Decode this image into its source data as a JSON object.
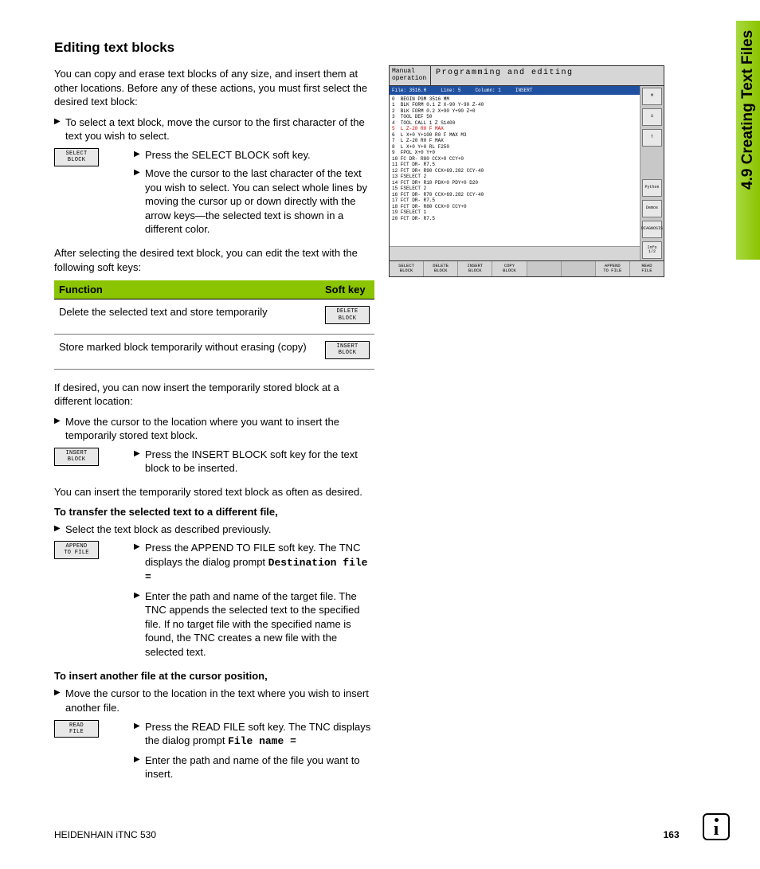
{
  "heading": "Editing text blocks",
  "intro": "You can copy and erase text blocks of any size, and insert them at other locations. Before any of these actions, you must first select the desired text block:",
  "bullet1": "To select a text block, move the cursor to the first character of the text you wish to select.",
  "softkeys": {
    "select_block": "SELECT\nBLOCK",
    "delete_block": "DELETE\nBLOCK",
    "insert_block": "INSERT\nBLOCK",
    "append_file": "APPEND\nTO FILE",
    "read_file": "READ\nFILE"
  },
  "step_select_press": "Press the SELECT BLOCK soft key.",
  "step_select_move": "Move the cursor to the last character of the text you wish to select. You can select whole lines by moving the cursor up or down directly with the arrow keys—the selected text is shown in a different color.",
  "after_select": "After selecting the desired text block, you can edit the text with the following soft keys:",
  "table": {
    "header_fn": "Function",
    "header_sk": "Soft key",
    "rows": [
      {
        "fn": "Delete the selected text and store temporarily",
        "sk": "DELETE\nBLOCK"
      },
      {
        "fn": "Store marked block temporarily without erasing (copy)",
        "sk": "INSERT\nBLOCK"
      }
    ],
    "header_bg": "#8bc400"
  },
  "if_desired": "If desired, you can now insert the temporarily stored block at a different location:",
  "bullet_insert_loc": "Move the cursor to the location where you want to insert the temporarily stored text block.",
  "step_insert_press": "Press the INSERT BLOCK soft key for the text block to be inserted.",
  "repeat": "You can insert the temporarily stored text block as often as desired.",
  "sub_transfer": "To transfer the selected text to a different file,",
  "bullet_transfer_select": "Select the text block as described previously.",
  "step_append_press": "Press the APPEND TO FILE soft key. The TNC displays the dialog prompt ",
  "append_prompt": "Destination file =",
  "step_append_enter": "Enter the path and name of the target file. The TNC appends the selected text to the specified file. If no target file with the specified name is found, the TNC creates a new file with the selected text.",
  "sub_insertfile": "To insert another file at the cursor position,",
  "bullet_insertfile_loc": "Move the cursor to the location in the text where you wish to insert another file.",
  "step_readfile_press": "Press the READ FILE soft key. The TNC displays the dialog prompt ",
  "readfile_prompt": "File name =",
  "step_readfile_enter": "Enter the path and name of the file you want to insert.",
  "side_tab": "4.9 Creating Text Files",
  "footer_left": "HEIDENHAIN iTNC 530",
  "footer_page": "163",
  "screenshot": {
    "mode": "Manual\noperation",
    "title": "Programming and editing",
    "status": {
      "file": "File: 3516.H",
      "line": "Line:  5",
      "col": "Column:  1",
      "ins": "INSERT"
    },
    "code_lines": [
      "0  BEGIN PGM 3516 MM",
      "1  BLK FORM 0.1 Z X-90 Y-90 Z-40",
      "2  BLK FORM 0.2 X+90 Y+90 Z+0",
      "3  TOOL DEF 50",
      "4  TOOL CALL 1 Z S1400"
    ],
    "code_red": "5  L Z-20 R0 F MAX",
    "code_lines2": [
      "6  L X+0 Y+100 R0 F MAX M3",
      "7  L Z-20 R0 F MAX",
      "8  L X+0 Y+0 RL F250",
      "9  FPOL X+0 Y+0",
      "10 FC DR- R80 CCX+0 CCY+0",
      "11 FCT DR- R7.5",
      "12 FCT DR+ R90 CCX+69.282 CCY-40",
      "13 FSELECT 2",
      "14 FCT DR+ R10 PDX+0 PDY+0 D20",
      "15 FSELECT 2",
      "16 FCT DR- R70 CCX+69.282 CCY-40",
      "17 FCT DR- R7.5",
      "18 FCT DR- R80 CCX+0 CCY+0",
      "19 FSELECT 1",
      "20 FCT DR- R7.5"
    ],
    "side_buttons": [
      "M",
      "S",
      "T",
      "Python",
      "Demos",
      "DIAGNOSIS",
      "Info 1/2"
    ],
    "softkeys": [
      "SELECT\nBLOCK",
      "DELETE\nBLOCK",
      "INSERT\nBLOCK",
      "COPY\nBLOCK",
      "",
      "",
      "APPEND\nTO FILE",
      "READ\nFILE"
    ]
  }
}
